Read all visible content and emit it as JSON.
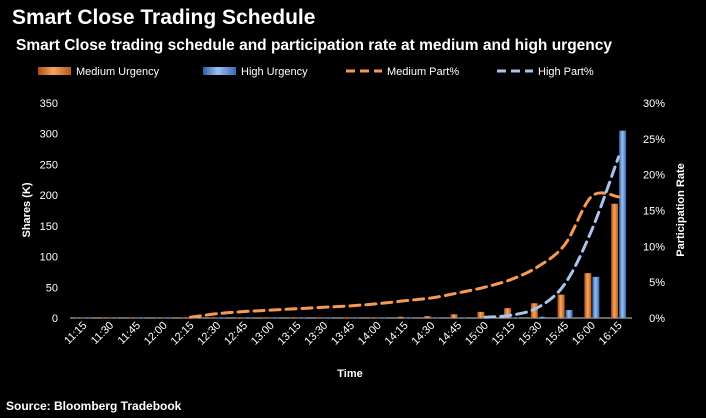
{
  "header": {
    "title": "Smart Close Trading Schedule",
    "subtitle": "Smart Close trading schedule and participation rate at medium and high urgency"
  },
  "footer": {
    "source": "Source: Bloomberg Tradebook"
  },
  "colors": {
    "medium": "#e07b2a",
    "high": "#5b8fd6",
    "medium_line": "#f59a54",
    "high_line": "#a9c3ea",
    "background": "#000000",
    "text": "#ffffff"
  },
  "chart_data": {
    "type": "bar",
    "title": "Smart Close trading schedule and participation rate at medium and high urgency",
    "xlabel": "Time",
    "ylabel": "Shares (K)",
    "y2label": "Participation Rate",
    "ylim": [
      0,
      350
    ],
    "y2lim": [
      0,
      0.3
    ],
    "yticks": [
      "0",
      "50",
      "100",
      "150",
      "200",
      "250",
      "300",
      "350"
    ],
    "y2ticks": [
      "0%",
      "5%",
      "10%",
      "15%",
      "20%",
      "25%",
      "30%"
    ],
    "grid": false,
    "legend_position": "top",
    "categories": [
      "11:15",
      "11:30",
      "11:45",
      "12:00",
      "12:15",
      "12:30",
      "12:45",
      "13:00",
      "13:15",
      "13:30",
      "13:45",
      "14:00",
      "14:15",
      "14:30",
      "14:45",
      "15:00",
      "15:15",
      "15:30",
      "15:45",
      "16:00",
      "16:15"
    ],
    "series": [
      {
        "name": "Medium Urgency",
        "kind": "bar",
        "axis": "left",
        "values": [
          1,
          1,
          1,
          1,
          1,
          1,
          1,
          1,
          1,
          1,
          1,
          1,
          2,
          3,
          6,
          10,
          16,
          24,
          38,
          73,
          186
        ]
      },
      {
        "name": "High Urgency",
        "kind": "bar",
        "axis": "left",
        "values": [
          1,
          1,
          1,
          1,
          1,
          1,
          1,
          1,
          1,
          1,
          1,
          1,
          1,
          1,
          1,
          1,
          1,
          2,
          13,
          67,
          305
        ]
      },
      {
        "name": "Medium Part%",
        "kind": "line",
        "axis": "right",
        "values": [
          null,
          null,
          null,
          null,
          0.001,
          0.006,
          0.009,
          0.011,
          0.013,
          0.015,
          0.017,
          0.02,
          0.024,
          0.028,
          0.035,
          0.043,
          0.054,
          0.072,
          0.103,
          0.17,
          0.169
        ]
      },
      {
        "name": "High Part%",
        "kind": "line",
        "axis": "right",
        "values": [
          null,
          null,
          null,
          null,
          null,
          null,
          null,
          null,
          null,
          null,
          null,
          null,
          null,
          null,
          null,
          0.001,
          0.004,
          0.015,
          0.048,
          0.123,
          0.225
        ]
      }
    ]
  }
}
